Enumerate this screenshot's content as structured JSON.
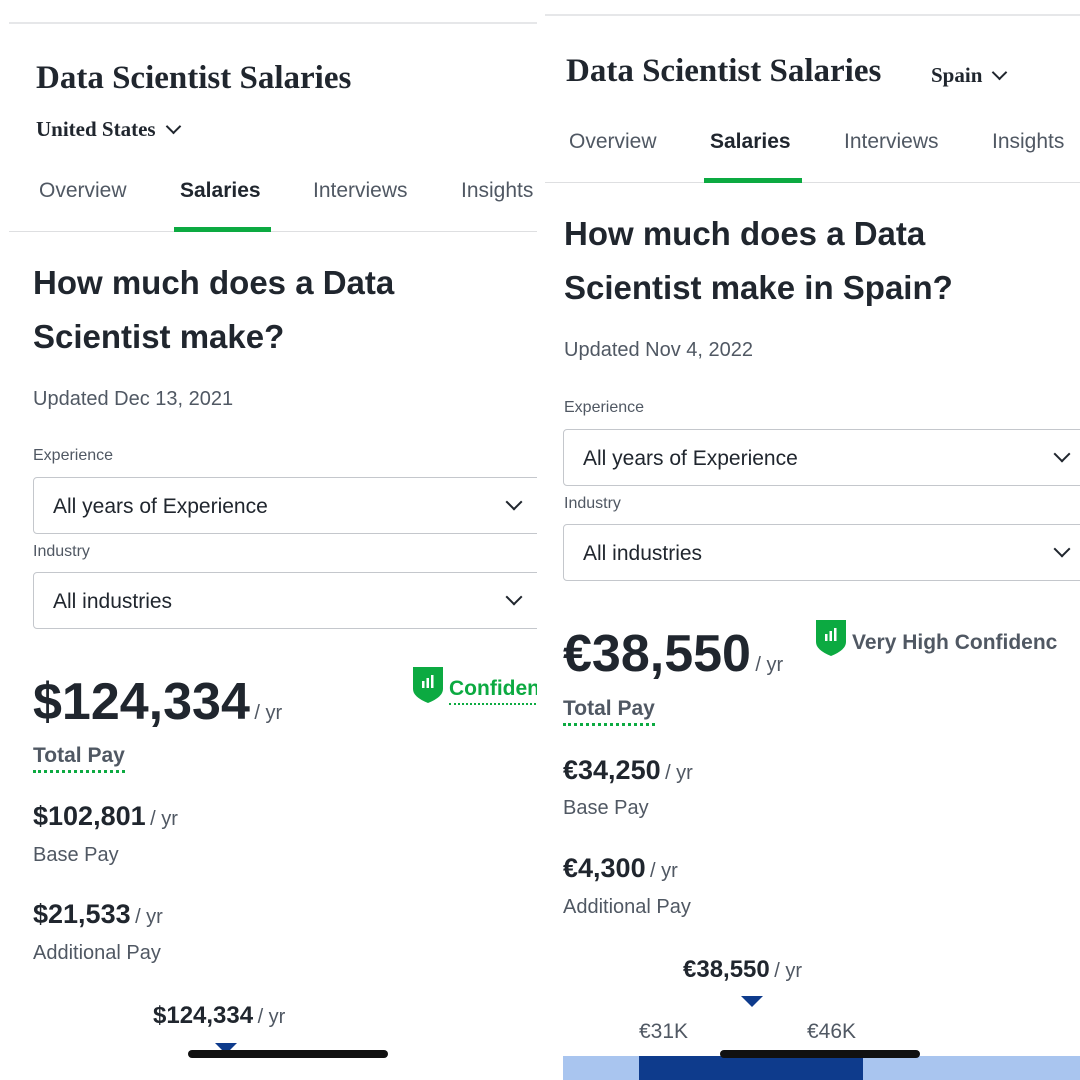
{
  "left": {
    "title": "Data Scientist Salaries",
    "location": "United States",
    "tabs": [
      "Overview",
      "Salaries",
      "Interviews",
      "Insights"
    ],
    "active_tab": "Salaries",
    "heading": "How much does a Data Scientist make?",
    "updated": "Updated Dec 13, 2021",
    "experience_label": "Experience",
    "experience_value": "All years of Experience",
    "industry_label": "Industry",
    "industry_value": "All industries",
    "total_pay": "$124,334",
    "per_year": "/ yr",
    "total_pay_label": "Total Pay",
    "confidence": "Confiden",
    "base_pay": "$102,801",
    "base_pay_label": "Base Pay",
    "additional_pay": "$21,533",
    "additional_pay_label": "Additional Pay",
    "chart_total": "$124,334"
  },
  "right": {
    "title": "Data Scientist Salaries",
    "location": "Spain",
    "tabs": [
      "Overview",
      "Salaries",
      "Interviews",
      "Insights"
    ],
    "active_tab": "Salaries",
    "heading": "How much does a Data Scientist make in Spain?",
    "updated": "Updated Nov 4, 2022",
    "experience_label": "Experience",
    "experience_value": "All years of Experience",
    "industry_label": "Industry",
    "industry_value": "All industries",
    "total_pay": "€38,550",
    "per_year": "/ yr",
    "total_pay_label": "Total Pay",
    "confidence": "Very High Confidenc",
    "base_pay": "€34,250",
    "base_pay_label": "Base Pay",
    "additional_pay": "€4,300",
    "additional_pay_label": "Additional Pay",
    "chart_total": "€38,550",
    "range_low": "€31K",
    "range_high": "€46K"
  },
  "colors": {
    "brand_green": "#0caa41",
    "text_dark": "#20262e",
    "text_muted": "#505863",
    "range_dark": "#0e3b8c",
    "range_light": "#a9c5ef"
  }
}
